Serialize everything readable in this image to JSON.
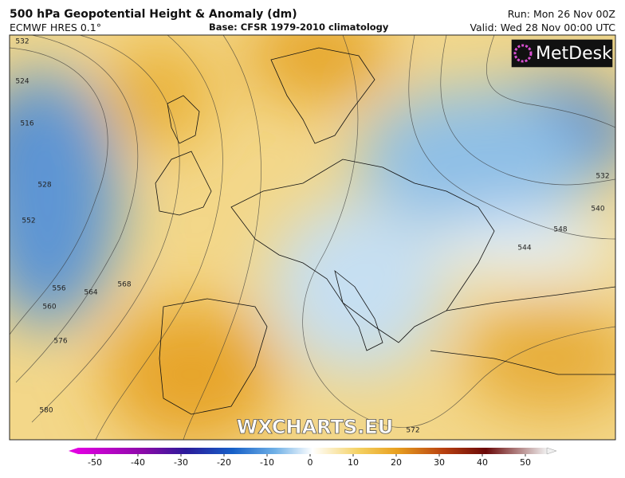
{
  "header": {
    "title": "500 hPa Geopotential Height & Anomaly (dm)",
    "model": "ECMWF HRES 0.1°",
    "base": "Base: CFSR 1979-2010 climatology",
    "run": "Run: Mon 26 Nov 00Z",
    "valid": "Valid: Wed 28 Nov 00:00 UTC"
  },
  "map": {
    "logo": "MetDesk",
    "watermark": "WXCHARTS.EU",
    "contour_labels": [
      532,
      524,
      516,
      528,
      552,
      556,
      560,
      564,
      568,
      576,
      580,
      572,
      532,
      540,
      548,
      544
    ]
  },
  "colorbar": {
    "range": [
      -50,
      50
    ],
    "ticks": [
      -50,
      -40,
      -30,
      -20,
      -10,
      0,
      10,
      20,
      30,
      40,
      50
    ]
  }
}
